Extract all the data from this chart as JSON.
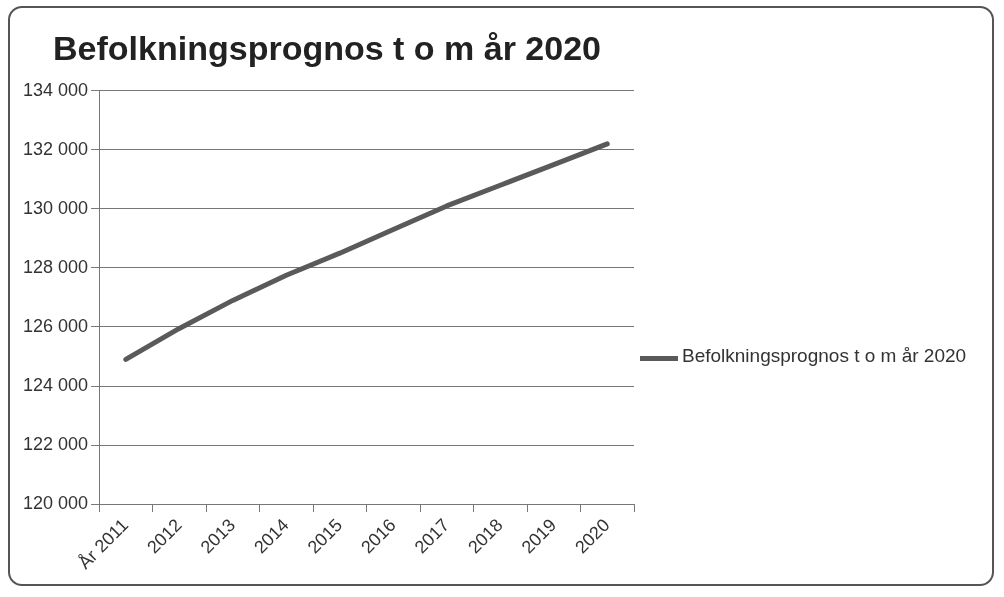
{
  "chart_data": {
    "type": "line",
    "title": "Befolkningsprognos t o m år 2020",
    "categories": [
      "År 2011",
      "2012",
      "2013",
      "2014",
      "2015",
      "2016",
      "2017",
      "2018",
      "2019",
      "2020"
    ],
    "series": [
      {
        "name": "Befolkningsprognos t o m år 2020",
        "color": "#5a5a5a",
        "values": [
          124900,
          125950,
          126900,
          127750,
          128500,
          129300,
          130100,
          130800,
          131500,
          132200
        ]
      }
    ],
    "ylim": [
      120000,
      134000
    ],
    "yticks": [
      {
        "value": 120000,
        "label": "120 000"
      },
      {
        "value": 122000,
        "label": "122 000"
      },
      {
        "value": 124000,
        "label": "124 000"
      },
      {
        "value": 126000,
        "label": "126 000"
      },
      {
        "value": 128000,
        "label": "128 000"
      },
      {
        "value": 130000,
        "label": "130 000"
      },
      {
        "value": 132000,
        "label": "132 000"
      },
      {
        "value": 134000,
        "label": "134 000"
      }
    ],
    "grid": "y",
    "legend": "right",
    "marker": "none",
    "line_style": "solid"
  }
}
